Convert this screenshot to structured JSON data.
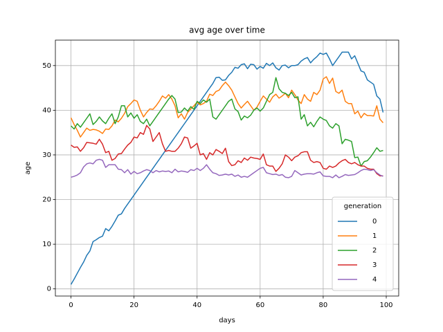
{
  "chart_data": {
    "type": "line",
    "title": "avg age over time",
    "xlabel": "days",
    "ylabel": "age",
    "x": [
      0,
      1,
      2,
      3,
      4,
      5,
      6,
      7,
      8,
      9,
      10,
      11,
      12,
      13,
      14,
      15,
      16,
      17,
      18,
      19,
      20,
      21,
      22,
      23,
      24,
      25,
      26,
      27,
      28,
      29,
      30,
      31,
      32,
      33,
      34,
      35,
      36,
      37,
      38,
      39,
      40,
      41,
      42,
      43,
      44,
      45,
      46,
      47,
      48,
      49,
      50,
      51,
      52,
      53,
      54,
      55,
      56,
      57,
      58,
      59,
      60,
      61,
      62,
      63,
      64,
      65,
      66,
      67,
      68,
      69,
      70,
      71,
      72,
      73,
      74,
      75,
      76,
      77,
      78,
      79,
      80,
      81,
      82,
      83,
      84,
      85,
      86,
      87,
      88,
      89,
      90,
      91,
      92,
      93,
      94,
      95,
      96,
      97,
      98,
      99
    ],
    "series": [
      {
        "name": "0",
        "color": "#1f77b4",
        "values": [
          1,
          2.2,
          3.5,
          4.8,
          6,
          7.5,
          8.5,
          10.6,
          11,
          11.5,
          11.8,
          13.5,
          13,
          14,
          15.2,
          16.5,
          16.8,
          18,
          19,
          20,
          21,
          22,
          23,
          24,
          25,
          26,
          27,
          28,
          29,
          30,
          31,
          32,
          33,
          34,
          35,
          36,
          37,
          38,
          39,
          40,
          41,
          42,
          43,
          44,
          45,
          46,
          47.3,
          47.4,
          46.7,
          46.8,
          47.8,
          48.5,
          49.6,
          49.4,
          50.2,
          50.4,
          49.3,
          50.3,
          50.2,
          49.2,
          49.8,
          49.4,
          50.5,
          50,
          50.6,
          49.5,
          49,
          50,
          50.1,
          49.5,
          50,
          50,
          50.2,
          51,
          51.5,
          51.8,
          50.6,
          51.4,
          52,
          52.8,
          52.5,
          52.8,
          51.5,
          50,
          51,
          52,
          53,
          53,
          53,
          51.5,
          52.2,
          50.5,
          48.8,
          48.5,
          46.8,
          46.3,
          45.8,
          43.2,
          42.5,
          39.5
        ]
      },
      {
        "name": "1",
        "color": "#ff7f0e",
        "values": [
          38.3,
          36.8,
          35.5,
          34,
          35,
          36,
          35.5,
          35.7,
          35.6,
          35.3,
          34.8,
          35.8,
          35.7,
          36.5,
          37.8,
          37.4,
          38.2,
          39.3,
          40.8,
          41.5,
          42.3,
          42,
          40,
          38.5,
          39.5,
          40.3,
          40.2,
          41,
          42,
          43.2,
          42.7,
          43.5,
          42.5,
          41,
          38.3,
          39.2,
          38,
          39.5,
          40.3,
          41,
          41.8,
          41.2,
          41.5,
          42,
          43.6,
          43.3,
          44.2,
          44.5,
          45.5,
          46.3,
          45.5,
          44.5,
          43,
          41.5,
          40.5,
          41.3,
          42,
          41,
          40,
          40.7,
          42,
          43.2,
          42.5,
          41.8,
          43,
          43.6,
          42.7,
          43.2,
          43.8,
          42.8,
          44.5,
          43.5,
          42.3,
          41.5,
          43.5,
          42.5,
          42,
          44,
          43.5,
          44.5,
          47,
          47.5,
          46,
          47.2,
          44.2,
          43.8,
          44.5,
          42,
          41.5,
          41.5,
          39.2,
          39.8,
          38.3,
          39.3,
          38.8,
          38.8,
          38.7,
          41,
          38,
          37.2
        ]
      },
      {
        "name": "2",
        "color": "#2ca02c",
        "values": [
          36.5,
          35.8,
          37,
          36.2,
          37.2,
          38.2,
          39.2,
          36.8,
          37.5,
          38.5,
          37.6,
          37,
          38.2,
          39.2,
          37,
          38.5,
          41,
          41,
          38.5,
          39.4,
          38.2,
          39,
          37.5,
          37,
          38,
          36.5,
          37.5,
          38.5,
          39.5,
          40.5,
          41.5,
          42.5,
          43.3,
          42.5,
          39.5,
          39.6,
          40.5,
          39.8,
          40.8,
          40.2,
          42,
          41.5,
          42.3,
          41.8,
          42.5,
          38.5,
          38,
          39,
          40,
          41,
          42,
          42.5,
          40.3,
          39.7,
          37.8,
          38.7,
          38.3,
          38.9,
          40,
          40.5,
          39.8,
          40.5,
          42,
          43.5,
          44,
          47.3,
          44.8,
          44,
          43.8,
          43.3,
          44,
          42.8,
          43,
          38,
          39,
          36.5,
          37.3,
          36.3,
          37.5,
          38.5,
          38,
          37.7,
          36.5,
          36,
          37,
          36.5,
          32.5,
          33.5,
          33.3,
          33,
          29.4,
          29.5,
          27.5,
          28.5,
          28.7,
          29.5,
          30.5,
          31.6,
          30.8,
          31
        ]
      },
      {
        "name": "3",
        "color": "#d62728",
        "values": [
          32.2,
          31.7,
          31.8,
          30.8,
          31.6,
          32.8,
          32.7,
          32.6,
          32.4,
          33.5,
          32.4,
          30.5,
          30.8,
          28.8,
          29.2,
          30.2,
          30.3,
          31.3,
          32.2,
          32.8,
          34,
          33.8,
          35,
          34.6,
          36.6,
          35.8,
          33,
          34,
          35,
          32.5,
          30.8,
          31,
          30.8,
          30.8,
          31.5,
          32.5,
          34,
          33.8,
          31.5,
          32,
          32.6,
          30,
          30.3,
          29,
          30.5,
          30,
          31.2,
          30.8,
          30.3,
          31.5,
          28.5,
          27.6,
          27.8,
          28.7,
          28.3,
          29.3,
          28.8,
          29.5,
          29.3,
          29.2,
          29,
          30.2,
          27.8,
          27.5,
          27.5,
          26.3,
          27,
          28,
          30,
          29.5,
          28.7,
          29.5,
          29.8,
          30.5,
          30.7,
          30.7,
          28.8,
          28.3,
          28.5,
          28.3,
          27,
          26.8,
          27.5,
          27.2,
          27.5,
          28.2,
          28.7,
          29,
          28.3,
          28,
          28.3,
          27.8,
          27.5,
          27.5,
          27,
          26.8,
          26.8,
          25.8,
          25.3,
          25.3
        ]
      },
      {
        "name": "4",
        "color": "#9467bd",
        "values": [
          25,
          25.2,
          25.5,
          26,
          27.3,
          28,
          28.2,
          28,
          28.8,
          29,
          28.8,
          27.2,
          27.8,
          27.8,
          27.8,
          26.8,
          26.7,
          26,
          26.7,
          25.7,
          26.3,
          25.8,
          26,
          26.4,
          26.7,
          26.5,
          26,
          26.5,
          26.2,
          26.4,
          26.3,
          26.4,
          26,
          26.8,
          26.2,
          26.4,
          26.3,
          26.1,
          26.7,
          26.5,
          27,
          26.5,
          27,
          27.8,
          26.8,
          26,
          25.8,
          25.4,
          25.5,
          25.7,
          25.5,
          25.7,
          25.2,
          25.5,
          25,
          25.2,
          25,
          25.5,
          26,
          26.5,
          27,
          27.2,
          26,
          25.8,
          25.6,
          25.7,
          25.4,
          25.6,
          25,
          24.9,
          25.2,
          26.5,
          26,
          25.5,
          25.7,
          25.8,
          25.8,
          25.7,
          26,
          26.2,
          25.3,
          25.2,
          25.2,
          24.9,
          25.5,
          24.9,
          25.2,
          25.6,
          25.4,
          25.5,
          25.6,
          26,
          26.5,
          26.8,
          26.7,
          26.5,
          26.7,
          26,
          25.5,
          25.2
        ]
      }
    ],
    "xlim": [
      -4.95,
      103.95
    ],
    "xticks": [
      0,
      20,
      40,
      60,
      80,
      100
    ],
    "ylim": [
      -1.6,
      55.7
    ],
    "yticks": [
      0,
      10,
      20,
      30,
      40,
      50
    ],
    "grid": true,
    "legend_title": "generation",
    "legend_position": "lower right"
  }
}
